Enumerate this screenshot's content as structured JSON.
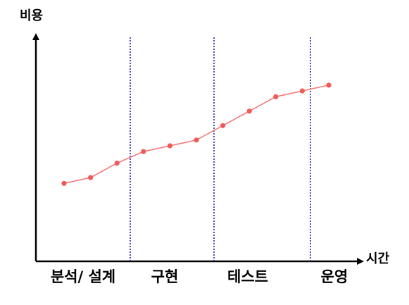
{
  "chart_data": {
    "type": "line",
    "title": "",
    "ylabel": "비용",
    "xlabel": "시간",
    "grid": false,
    "legend": "none",
    "phases": [
      "분석/ 설계",
      "구현",
      "테스트",
      "운영"
    ],
    "series": [
      {
        "values": [
          27,
          29,
          34,
          38,
          40,
          42,
          47,
          52,
          57,
          59,
          61
        ]
      }
    ],
    "colors": {
      "line": "#f47878",
      "marker": "#f25a5a",
      "axis": "#000000",
      "divider": "#1f1fb0"
    }
  }
}
